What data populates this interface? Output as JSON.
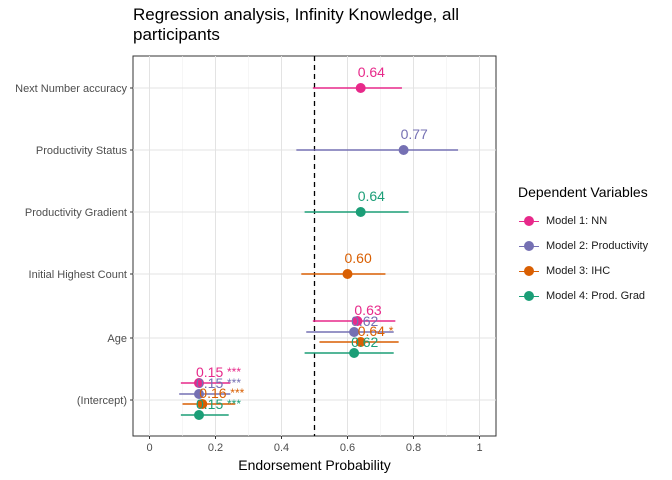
{
  "chart_data": {
    "type": "scatter",
    "subtype": "coefficient-plot",
    "title": "Regression analysis, Infinity Knowledge, all participants",
    "xlabel": "Endorsement Probability",
    "ylabel": "",
    "xlim": [
      -0.05,
      1.05
    ],
    "xticks": [
      0,
      0.2,
      0.4,
      0.6,
      0.8,
      1
    ],
    "xtick_labels": [
      "0",
      "0.2",
      "0.4",
      "0.6",
      "0.8",
      "1"
    ],
    "reference_line": 0.5,
    "grid": true,
    "legend_position": "right",
    "categories": [
      "Next Number accuracy",
      "Productivity Status",
      "Productivity Gradient",
      "Initial Highest Count",
      "Age",
      "(Intercept)"
    ],
    "legend_title": "Dependent Variables",
    "series": [
      {
        "name": "Model 1: NN",
        "color": "#E7298A",
        "points": [
          {
            "term": "Next Number accuracy",
            "estimate": 0.64,
            "low": 0.495,
            "high": 0.765,
            "label": "0.64",
            "sig": ""
          },
          {
            "term": "Age",
            "estimate": 0.63,
            "low": 0.495,
            "high": 0.745,
            "label": "0.63",
            "sig": ""
          },
          {
            "term": "(Intercept)",
            "estimate": 0.15,
            "low": 0.095,
            "high": 0.245,
            "label": "0.15",
            "sig": "***"
          }
        ]
      },
      {
        "name": "Model 2: Productivity",
        "color": "#7570B3",
        "points": [
          {
            "term": "Productivity Status",
            "estimate": 0.77,
            "low": 0.445,
            "high": 0.935,
            "label": "0.77",
            "sig": ""
          },
          {
            "term": "Age",
            "estimate": 0.62,
            "low": 0.475,
            "high": 0.74,
            "label": "0.62",
            "sig": ""
          },
          {
            "term": "(Intercept)",
            "estimate": 0.15,
            "low": 0.09,
            "high": 0.245,
            "label": "0.15",
            "sig": "***"
          }
        ]
      },
      {
        "name": "Model 3: IHC",
        "color": "#D95F02",
        "points": [
          {
            "term": "Initial Highest Count",
            "estimate": 0.6,
            "low": 0.46,
            "high": 0.715,
            "label": "0.60",
            "sig": ""
          },
          {
            "term": "Age",
            "estimate": 0.64,
            "low": 0.515,
            "high": 0.755,
            "label": "0.64",
            "sig": "*"
          },
          {
            "term": "(Intercept)",
            "estimate": 0.16,
            "low": 0.1,
            "high": 0.26,
            "label": "0.16",
            "sig": "***"
          }
        ]
      },
      {
        "name": "Model 4: Prod. Grad",
        "color": "#1B9E77",
        "points": [
          {
            "term": "Productivity Gradient",
            "estimate": 0.64,
            "low": 0.47,
            "high": 0.785,
            "label": "0.64",
            "sig": ""
          },
          {
            "term": "Age",
            "estimate": 0.62,
            "low": 0.47,
            "high": 0.74,
            "label": "0.62",
            "sig": ""
          },
          {
            "term": "(Intercept)",
            "estimate": 0.15,
            "low": 0.095,
            "high": 0.24,
            "label": "0.15",
            "sig": "***"
          }
        ]
      }
    ]
  }
}
